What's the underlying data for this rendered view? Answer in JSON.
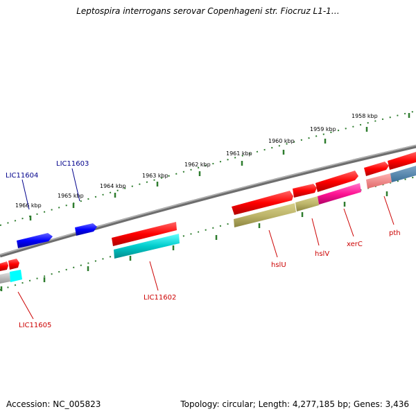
{
  "title": "Leptospira interrogans serovar Copenhageni str. Fiocruz L1-1…",
  "footer": {
    "accession": "Accession: NC_005823",
    "summary": "Topology: circular; Length: 4,277,185 bp; Genes: 3,436"
  },
  "colors": {
    "backbone": "#808080",
    "forward_gene": "#ff0000",
    "reverse_gene": "#0000ff",
    "tick": "#2e7d2e",
    "label_forward": "#cc0000",
    "label_reverse": "#00008b"
  },
  "scale_ticks": [
    "1966 kbp",
    "1965 kbp",
    "1964 kbp",
    "1963 kbp",
    "1962 kbp",
    "1961 kbp",
    "1960 kbp",
    "1959 kbp",
    "1958 kbp"
  ],
  "genes": {
    "lic11604": "LIC11604",
    "lic11603": "LIC11603",
    "lic11602": "LIC11602",
    "lic11605": "LIC11605",
    "hslu": "hslU",
    "hslv": "hslV",
    "xerc": "xerC",
    "pth": "pth"
  }
}
